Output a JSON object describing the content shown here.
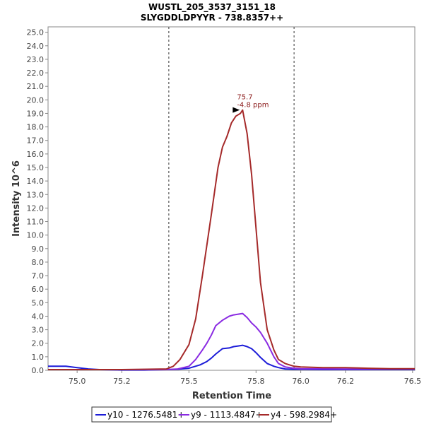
{
  "chart_data": {
    "type": "line",
    "title": "WUSTL_205_3537_3151_18",
    "subtitle": "SLYGDDLDPYYR - 738.8357++",
    "xlabel": "Retention Time",
    "ylabel": "Intensity 10^6",
    "xlim": [
      74.87,
      76.51
    ],
    "ylim": [
      0,
      25.4
    ],
    "x_ticks": [
      "75.0",
      "75.2",
      "75.5",
      "75.8",
      "76.0",
      "76.2",
      "76.5"
    ],
    "x_tick_values": [
      75.0,
      75.2,
      75.5,
      75.8,
      76.0,
      76.2,
      76.5
    ],
    "y_ticks": [
      "0.0",
      "1.0",
      "2.0",
      "3.0",
      "4.0",
      "5.0",
      "6.0",
      "7.0",
      "8.0",
      "9.0",
      "10.0",
      "11.0",
      "12.0",
      "13.0",
      "14.0",
      "15.0",
      "16.0",
      "17.0",
      "18.0",
      "19.0",
      "20.0",
      "21.0",
      "22.0",
      "23.0",
      "24.0",
      "25.0"
    ],
    "y_tick_values": [
      0,
      1,
      2,
      3,
      4,
      5,
      6,
      7,
      8,
      9,
      10,
      11,
      12,
      13,
      14,
      15,
      16,
      17,
      18,
      19,
      20,
      21,
      22,
      23,
      24,
      25
    ],
    "boundaries": [
      75.41,
      75.97
    ],
    "annotation": {
      "x": 75.74,
      "y": 19.25,
      "line1": "75.7",
      "line2": "-4.8 ppm",
      "color": "#8b1a1a"
    },
    "series": [
      {
        "name": "y10 - 1276.5481+",
        "color": "#1c1cd8",
        "x": [
          74.87,
          74.95,
          75.0,
          75.05,
          75.1,
          75.2,
          75.3,
          75.4,
          75.45,
          75.5,
          75.55,
          75.58,
          75.6,
          75.62,
          75.65,
          75.68,
          75.7,
          75.72,
          75.74,
          75.76,
          75.78,
          75.8,
          75.82,
          75.85,
          75.88,
          75.9,
          75.93,
          75.97,
          76.0,
          76.1,
          76.2,
          76.3,
          76.4,
          76.51
        ],
        "y": [
          0.3,
          0.3,
          0.2,
          0.1,
          0.05,
          0.02,
          0.02,
          0.05,
          0.08,
          0.15,
          0.4,
          0.65,
          0.9,
          1.2,
          1.6,
          1.65,
          1.75,
          1.8,
          1.85,
          1.75,
          1.6,
          1.3,
          0.95,
          0.5,
          0.3,
          0.2,
          0.1,
          0.08,
          0.08,
          0.05,
          0.05,
          0.05,
          0.05,
          0.05
        ]
      },
      {
        "name": "y9 - 1113.4847+",
        "color": "#8a2be2",
        "x": [
          74.87,
          75.0,
          75.2,
          75.4,
          75.45,
          75.5,
          75.53,
          75.56,
          75.58,
          75.6,
          75.62,
          75.65,
          75.68,
          75.7,
          75.72,
          75.74,
          75.76,
          75.78,
          75.8,
          75.82,
          75.85,
          75.88,
          75.9,
          75.93,
          75.97,
          76.0,
          76.2,
          76.4,
          76.51
        ],
        "y": [
          0.05,
          0.05,
          0.05,
          0.05,
          0.1,
          0.3,
          0.8,
          1.5,
          2.0,
          2.6,
          3.3,
          3.7,
          4.0,
          4.1,
          4.15,
          4.2,
          3.9,
          3.5,
          3.2,
          2.8,
          2.0,
          1.0,
          0.5,
          0.25,
          0.15,
          0.12,
          0.1,
          0.1,
          0.1
        ]
      },
      {
        "name": "y4 - 598.2984+",
        "color": "#a52a2a",
        "x": [
          74.87,
          75.0,
          75.2,
          75.4,
          75.43,
          75.46,
          75.5,
          75.53,
          75.56,
          75.6,
          75.63,
          75.65,
          75.67,
          75.69,
          75.71,
          75.73,
          75.74,
          75.76,
          75.78,
          75.8,
          75.82,
          75.85,
          75.88,
          75.9,
          75.93,
          75.97,
          76.0,
          76.1,
          76.2,
          76.3,
          76.4,
          76.51
        ],
        "y": [
          0.05,
          0.05,
          0.05,
          0.1,
          0.3,
          0.8,
          1.9,
          3.8,
          7.0,
          11.5,
          15.0,
          16.5,
          17.3,
          18.3,
          18.8,
          19.0,
          19.25,
          17.5,
          14.5,
          10.5,
          6.5,
          3.0,
          1.5,
          0.8,
          0.5,
          0.3,
          0.25,
          0.2,
          0.2,
          0.15,
          0.12,
          0.12
        ]
      }
    ]
  }
}
